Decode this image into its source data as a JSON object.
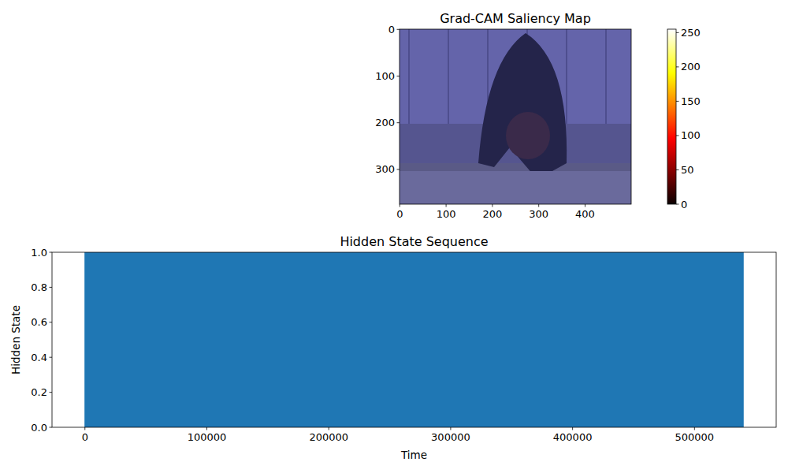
{
  "chart_data": [
    {
      "type": "image",
      "title": "Grad-CAM Saliency Map",
      "xlim": [
        -0.5,
        499.5
      ],
      "ylim": [
        374.5,
        -0.5
      ],
      "xticks": [
        0,
        100,
        200,
        300,
        400
      ],
      "yticks": [
        0,
        100,
        200,
        300
      ],
      "colorbar": {
        "range": [
          0,
          255
        ],
        "ticks": [
          0,
          50,
          100,
          150,
          200,
          250
        ]
      }
    },
    {
      "type": "area",
      "title": "Hidden State Sequence",
      "x_label": "Time",
      "y_label": "Hidden State",
      "x": [
        0,
        540000
      ],
      "values": [
        1,
        1
      ],
      "color": "#1f77b4",
      "xlim": [
        -27000,
        567000
      ],
      "ylim": [
        0,
        1
      ],
      "xticks": [
        0,
        100000,
        200000,
        300000,
        400000,
        500000
      ],
      "yticks": [
        {
          "value": 0,
          "label": "0.0"
        },
        0.2,
        0.4,
        0.6,
        0.8,
        {
          "value": 1,
          "label": "1.0"
        }
      ]
    }
  ]
}
